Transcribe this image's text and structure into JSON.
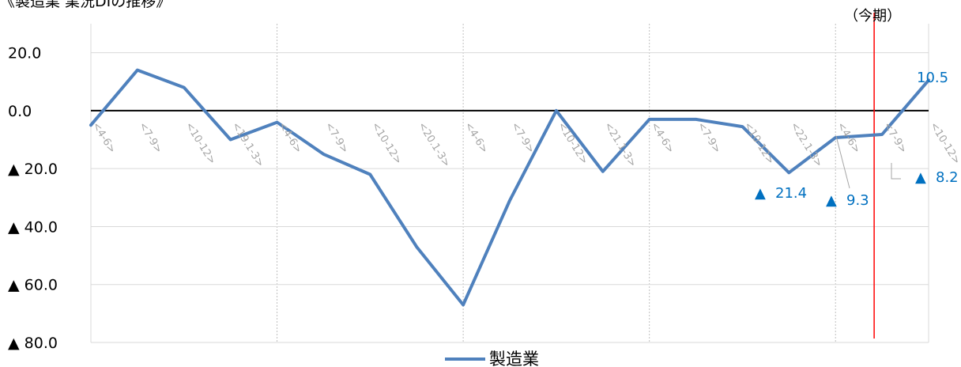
{
  "chart_data": {
    "type": "line",
    "title": "《製造業 業況DIの推移》",
    "categories": [
      "<4-6>",
      "<7-9>",
      "<10-12>",
      "<19.1-3>",
      "<4-6>",
      "<7-9>",
      "<10-12>",
      "<20.1-3>",
      "<4-6>",
      "<7-9>",
      "<10-12>",
      "<21.1-3>",
      "<4-6>",
      "<7-9>",
      "<10-12>",
      "<22.1-3>",
      "<4-6>",
      "<7-9>",
      "<10-12>"
    ],
    "series": [
      {
        "name": "製造業",
        "color": "#4f81bd",
        "values": [
          -5.0,
          14.0,
          8.0,
          -10.0,
          -4.0,
          -15.0,
          -22.0,
          -47.0,
          -67.0,
          -31.0,
          0.0,
          -21.0,
          -3.0,
          -3.0,
          -5.5,
          -21.4,
          -9.3,
          -8.2,
          10.5
        ]
      }
    ],
    "ylim": [
      -80,
      30
    ],
    "yticks": [
      {
        "value": 20,
        "label": "20.0"
      },
      {
        "value": 0,
        "label": "0.0"
      },
      {
        "value": -20,
        "label": "▲ 20.0"
      },
      {
        "value": -40,
        "label": "▲ 40.0"
      },
      {
        "value": -60,
        "label": "▲ 60.0"
      },
      {
        "value": -80,
        "label": "▲ 80.0"
      }
    ],
    "data_labels": [
      {
        "index": 15,
        "marker": "▲",
        "text": "21.4",
        "color": "#0070c0"
      },
      {
        "index": 16,
        "marker": "▲",
        "text": "9.3",
        "color": "#0070c0"
      },
      {
        "index": 17,
        "marker": "▲",
        "text": "8.2",
        "color": "#0070c0"
      },
      {
        "index": 18,
        "marker": "",
        "text": "10.5",
        "color": "#0070c0"
      }
    ],
    "current_period": {
      "label": "（今期）",
      "after_index": 17,
      "color": "#ff0000"
    },
    "grid": true,
    "legend": "bottom-center"
  }
}
